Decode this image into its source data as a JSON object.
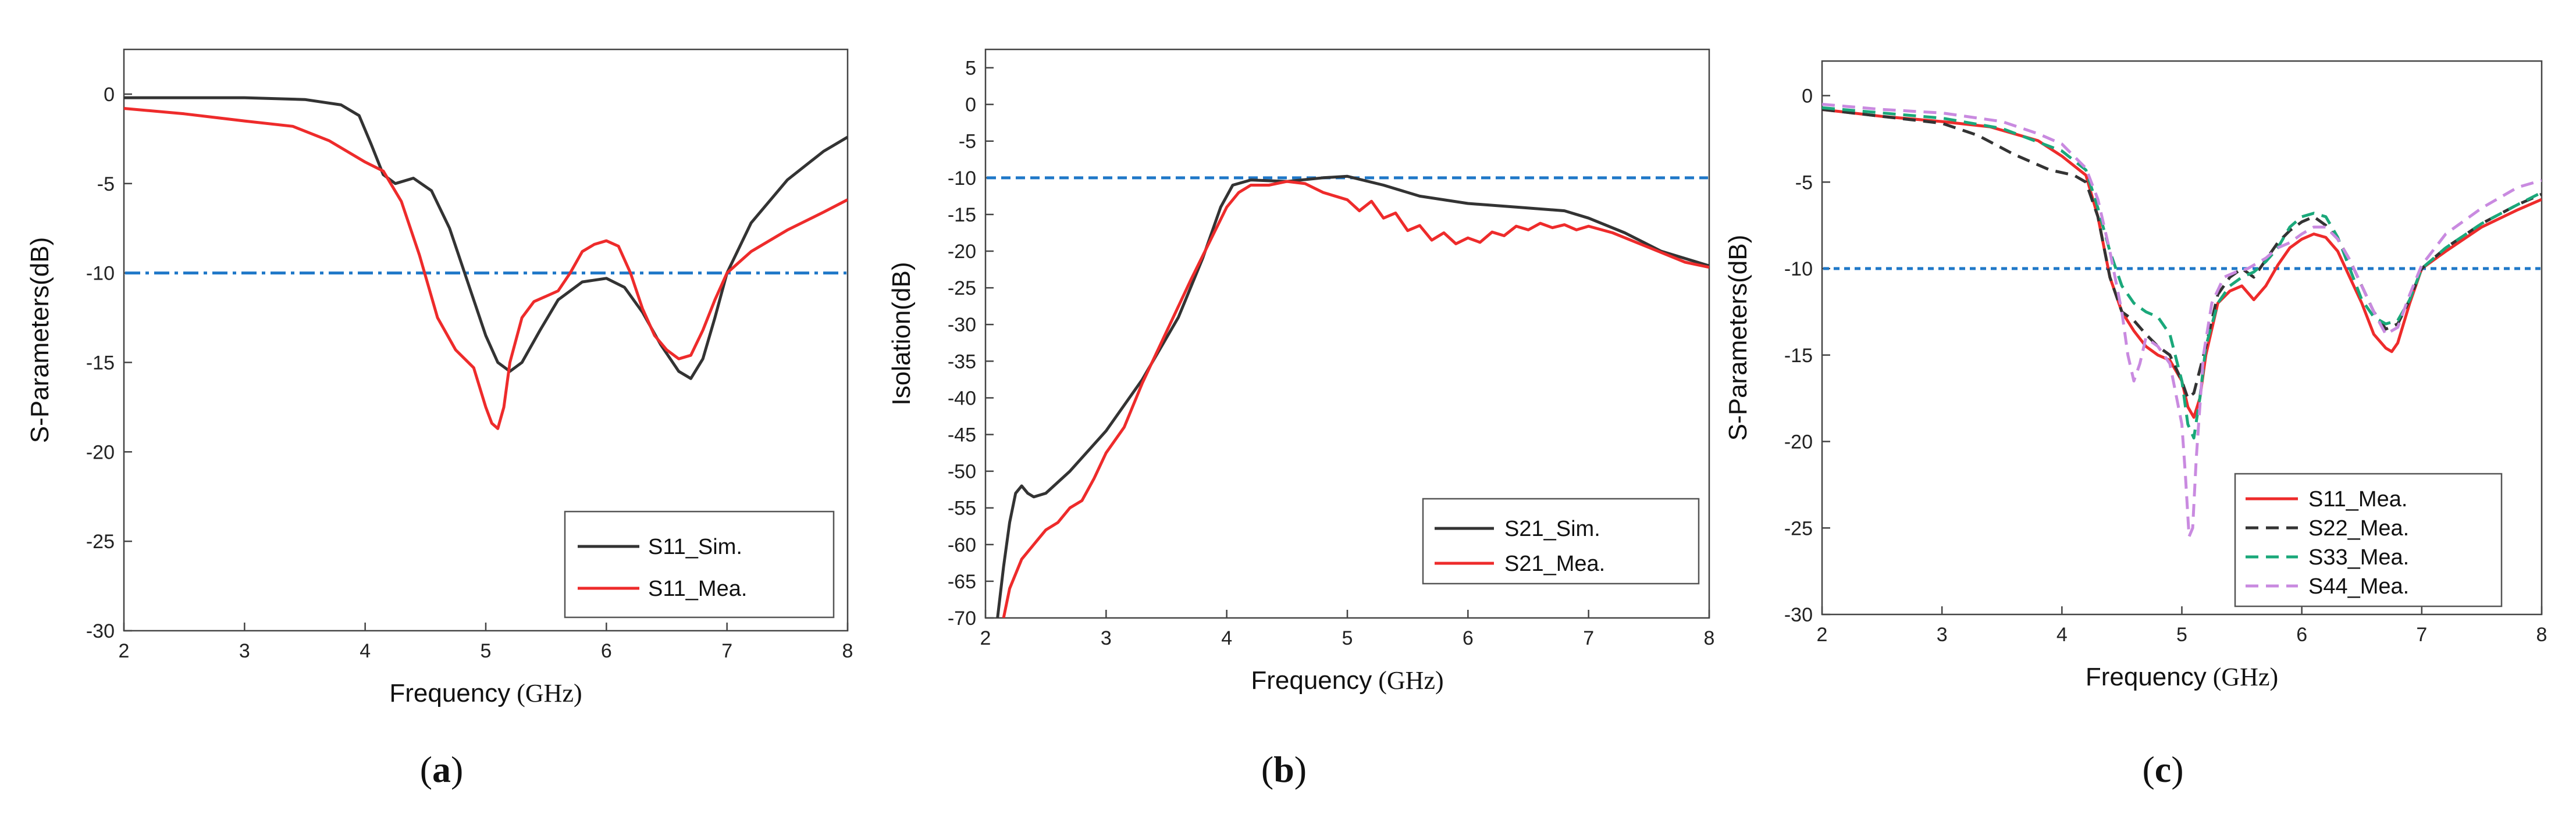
{
  "figure": {
    "panels": [
      {
        "label_open": "(",
        "label_letter": "a",
        "label_close": ")"
      },
      {
        "label_open": "(",
        "label_letter": "b",
        "label_close": ")"
      },
      {
        "label_open": "(",
        "label_letter": "c",
        "label_close": ")"
      }
    ]
  },
  "chart_data": [
    {
      "type": "line",
      "xlabel_main": "Frequency",
      "xlabel_unit": " (GHz)",
      "ylabel": "S-Parameters(dB)",
      "xlim": [
        2,
        8
      ],
      "ylim": [
        -30,
        2.5
      ],
      "xticks": [
        2,
        3,
        4,
        5,
        6,
        7,
        8
      ],
      "yticks": [
        0,
        -5,
        -10,
        -15,
        -20,
        -25,
        -30
      ],
      "legend_position": "bottom-right",
      "reference_line": {
        "y": -10,
        "color": "#1f78c8",
        "style": "dash-dot"
      },
      "series": [
        {
          "name": "S11_Sim.",
          "color": "#333333",
          "dash": "solid",
          "in_legend": true,
          "x": [
            2,
            2.5,
            3,
            3.5,
            3.8,
            3.95,
            4.05,
            4.15,
            4.25,
            4.4,
            4.55,
            4.7,
            4.85,
            5.0,
            5.1,
            5.2,
            5.3,
            5.45,
            5.6,
            5.8,
            6.0,
            6.15,
            6.3,
            6.45,
            6.6,
            6.7,
            6.8,
            6.9,
            7.0,
            7.2,
            7.5,
            7.8,
            8.0
          ],
          "y": [
            -0.2,
            -0.2,
            -0.2,
            -0.3,
            -0.6,
            -1.2,
            -2.8,
            -4.5,
            -5.0,
            -4.7,
            -5.4,
            -7.5,
            -10.5,
            -13.5,
            -15.0,
            -15.5,
            -15.0,
            -13.2,
            -11.5,
            -10.5,
            -10.3,
            -10.8,
            -12.2,
            -14.0,
            -15.5,
            -15.9,
            -14.8,
            -12.5,
            -10.0,
            -7.2,
            -4.8,
            -3.2,
            -2.4
          ]
        },
        {
          "name": "S11_Mea.",
          "color": "#ee2b2b",
          "dash": "solid",
          "in_legend": true,
          "x": [
            2,
            2.5,
            3,
            3.4,
            3.7,
            4.0,
            4.15,
            4.3,
            4.45,
            4.6,
            4.75,
            4.9,
            5.0,
            5.05,
            5.1,
            5.15,
            5.2,
            5.3,
            5.4,
            5.5,
            5.6,
            5.7,
            5.8,
            5.9,
            6.0,
            6.1,
            6.2,
            6.3,
            6.4,
            6.5,
            6.6,
            6.7,
            6.8,
            6.9,
            7.0,
            7.2,
            7.5,
            7.8,
            8.0
          ],
          "y": [
            -0.8,
            -1.1,
            -1.5,
            -1.8,
            -2.6,
            -3.8,
            -4.3,
            -6.0,
            -9.0,
            -12.5,
            -14.3,
            -15.3,
            -17.5,
            -18.4,
            -18.7,
            -17.5,
            -15.0,
            -12.5,
            -11.6,
            -11.3,
            -11.0,
            -10.0,
            -8.8,
            -8.4,
            -8.2,
            -8.5,
            -10.0,
            -12.0,
            -13.5,
            -14.3,
            -14.8,
            -14.6,
            -13.2,
            -11.5,
            -10.0,
            -8.8,
            -7.6,
            -6.6,
            -5.9
          ]
        }
      ]
    },
    {
      "type": "line",
      "xlabel_main": "Frequency",
      "xlabel_unit": " (GHz)",
      "ylabel": "Isolation(dB)",
      "xlim": [
        2,
        8
      ],
      "ylim": [
        -70,
        7.5
      ],
      "xticks": [
        2,
        3,
        4,
        5,
        6,
        7,
        8
      ],
      "yticks": [
        5,
        0,
        -5,
        -10,
        -15,
        -20,
        -25,
        -30,
        -35,
        -40,
        -45,
        -50,
        -55,
        -60,
        -65,
        -70
      ],
      "legend_position": "bottom-right",
      "reference_line": {
        "y": -10,
        "color": "#1f78c8",
        "style": "dash-dot"
      },
      "series": [
        {
          "name": "S21_Sim.",
          "color": "#333333",
          "dash": "solid",
          "in_legend": true,
          "x": [
            2.1,
            2.15,
            2.2,
            2.25,
            2.3,
            2.35,
            2.4,
            2.5,
            2.7,
            3.0,
            3.3,
            3.6,
            3.8,
            3.95,
            4.05,
            4.2,
            4.5,
            4.8,
            5.0,
            5.3,
            5.6,
            6.0,
            6.4,
            6.8,
            7.0,
            7.3,
            7.6,
            8.0
          ],
          "y": [
            -70,
            -63,
            -57,
            -53,
            -52,
            -53,
            -53.5,
            -53,
            -50,
            -44.5,
            -37.5,
            -29,
            -21,
            -14,
            -11,
            -10.3,
            -10.5,
            -10,
            -9.8,
            -11,
            -12.5,
            -13.5,
            -14,
            -14.5,
            -15.5,
            -17.5,
            -20,
            -22
          ]
        },
        {
          "name": "S21_Mea.",
          "color": "#ee2b2b",
          "dash": "solid",
          "in_legend": true,
          "x": [
            2.15,
            2.2,
            2.3,
            2.4,
            2.5,
            2.6,
            2.7,
            2.8,
            2.9,
            3.0,
            3.15,
            3.3,
            3.5,
            3.7,
            3.85,
            4.0,
            4.1,
            4.2,
            4.35,
            4.5,
            4.65,
            4.8,
            5.0,
            5.1,
            5.2,
            5.3,
            5.4,
            5.5,
            5.6,
            5.7,
            5.8,
            5.9,
            6.0,
            6.1,
            6.2,
            6.3,
            6.4,
            6.5,
            6.6,
            6.7,
            6.8,
            6.9,
            7.0,
            7.2,
            7.5,
            7.8,
            8.0
          ],
          "y": [
            -70,
            -66,
            -62,
            -60,
            -58,
            -57,
            -55,
            -54,
            -51,
            -47.5,
            -44,
            -38,
            -31,
            -24,
            -19,
            -14,
            -12,
            -11,
            -11,
            -10.5,
            -10.8,
            -12,
            -13,
            -14.5,
            -13.2,
            -15.5,
            -14.8,
            -17.2,
            -16.5,
            -18.5,
            -17.5,
            -19,
            -18.2,
            -18.8,
            -17.4,
            -17.9,
            -16.6,
            -17.1,
            -16.2,
            -16.8,
            -16.4,
            -17.1,
            -16.6,
            -17.5,
            -19.5,
            -21.5,
            -22.2
          ]
        }
      ]
    },
    {
      "type": "line",
      "xlabel_main": "Frequency",
      "xlabel_unit": " (GHz)",
      "ylabel": "S-Parameters(dB)",
      "xlim": [
        2,
        8
      ],
      "ylim": [
        -30,
        2
      ],
      "xticks": [
        2,
        3,
        4,
        5,
        6,
        7,
        8
      ],
      "yticks": [
        0,
        -5,
        -10,
        -15,
        -20,
        -25,
        -30
      ],
      "legend_position": "bottom-right",
      "reference_line": {
        "y": -10,
        "color": "#1f78c8",
        "style": "dash-dot"
      },
      "series": [
        {
          "name": "S11_Mea.",
          "color": "#ee2b2b",
          "dash": "solid",
          "in_legend": true,
          "x": [
            2,
            2.5,
            3,
            3.4,
            3.8,
            4.0,
            4.2,
            4.3,
            4.4,
            4.5,
            4.6,
            4.7,
            4.8,
            4.9,
            5.0,
            5.05,
            5.1,
            5.15,
            5.2,
            5.3,
            5.4,
            5.5,
            5.6,
            5.7,
            5.8,
            5.9,
            6.0,
            6.1,
            6.2,
            6.3,
            6.4,
            6.5,
            6.6,
            6.7,
            6.75,
            6.8,
            6.9,
            7.0,
            7.2,
            7.5,
            7.8,
            8.0
          ],
          "y": [
            -0.8,
            -1.2,
            -1.5,
            -1.8,
            -2.6,
            -3.5,
            -4.6,
            -7.0,
            -10.5,
            -12.5,
            -13.6,
            -14.5,
            -15.0,
            -15.3,
            -16.5,
            -18.0,
            -18.6,
            -17.5,
            -15.0,
            -12.0,
            -11.3,
            -11.0,
            -11.8,
            -11.0,
            -9.8,
            -8.8,
            -8.3,
            -8.0,
            -8.2,
            -9.0,
            -10.5,
            -12.0,
            -13.8,
            -14.6,
            -14.8,
            -14.3,
            -12.0,
            -10.0,
            -9.0,
            -7.6,
            -6.6,
            -6.0
          ]
        },
        {
          "name": "S22_Mea.",
          "color": "#333333",
          "dash": "dash",
          "in_legend": true,
          "x": [
            2,
            2.5,
            3,
            3.3,
            3.6,
            3.9,
            4.1,
            4.2,
            4.3,
            4.4,
            4.5,
            4.6,
            4.7,
            4.8,
            4.9,
            5.0,
            5.05,
            5.1,
            5.2,
            5.3,
            5.4,
            5.5,
            5.6,
            5.7,
            5.8,
            5.9,
            6.0,
            6.1,
            6.2,
            6.3,
            6.4,
            6.5,
            6.6,
            6.7,
            6.8,
            6.9,
            7.0,
            7.2,
            7.5,
            7.8,
            8.0
          ],
          "y": [
            -0.8,
            -1.2,
            -1.6,
            -2.3,
            -3.4,
            -4.3,
            -4.6,
            -5.0,
            -7.0,
            -10.5,
            -12.5,
            -13.0,
            -13.8,
            -14.5,
            -15.0,
            -16.5,
            -17.5,
            -17.2,
            -14.5,
            -11.5,
            -10.5,
            -10.0,
            -10.5,
            -9.5,
            -8.5,
            -7.8,
            -7.3,
            -7.0,
            -7.5,
            -8.3,
            -9.5,
            -11.0,
            -12.5,
            -13.5,
            -13.2,
            -11.8,
            -10.0,
            -8.8,
            -7.4,
            -6.3,
            -5.7
          ]
        },
        {
          "name": "S33_Mea.",
          "color": "#1aa87a",
          "dash": "dash",
          "in_legend": true,
          "x": [
            2,
            2.5,
            3,
            3.5,
            4.0,
            4.2,
            4.3,
            4.4,
            4.5,
            4.6,
            4.7,
            4.8,
            4.9,
            5.0,
            5.05,
            5.1,
            5.15,
            5.2,
            5.3,
            5.4,
            5.5,
            5.6,
            5.7,
            5.8,
            5.9,
            6.0,
            6.1,
            6.2,
            6.3,
            6.4,
            6.5,
            6.6,
            6.7,
            6.8,
            6.9,
            7.0,
            7.2,
            7.5,
            7.8,
            8.0
          ],
          "y": [
            -0.7,
            -1.0,
            -1.3,
            -1.9,
            -3.2,
            -4.3,
            -6.5,
            -9.0,
            -11.0,
            -12.0,
            -12.5,
            -12.8,
            -13.8,
            -16.5,
            -19.0,
            -19.8,
            -17.5,
            -14.5,
            -12.0,
            -11.0,
            -10.5,
            -10.2,
            -9.6,
            -8.8,
            -7.6,
            -7.0,
            -6.8,
            -7.0,
            -8.2,
            -10.0,
            -11.8,
            -12.8,
            -13.2,
            -13.0,
            -11.8,
            -10.0,
            -8.8,
            -7.4,
            -6.3,
            -5.6
          ]
        },
        {
          "name": "S44_Mea.",
          "color": "#c98ae0",
          "dash": "dash",
          "in_legend": true,
          "x": [
            2,
            2.5,
            3,
            3.5,
            3.8,
            4.0,
            4.1,
            4.2,
            4.3,
            4.4,
            4.5,
            4.55,
            4.6,
            4.65,
            4.7,
            4.8,
            4.9,
            5.0,
            5.03,
            5.06,
            5.09,
            5.12,
            5.18,
            5.25,
            5.35,
            5.45,
            5.55,
            5.7,
            5.8,
            5.9,
            6.0,
            6.1,
            6.2,
            6.3,
            6.4,
            6.5,
            6.6,
            6.7,
            6.8,
            6.9,
            7.0,
            7.2,
            7.5,
            7.8,
            8.0
          ],
          "y": [
            -0.5,
            -0.8,
            -1.0,
            -1.5,
            -2.2,
            -2.8,
            -3.5,
            -4.2,
            -6.0,
            -9.0,
            -12.5,
            -15.0,
            -16.5,
            -15.5,
            -14.0,
            -14.5,
            -15.5,
            -19.0,
            -22.0,
            -25.5,
            -25.0,
            -21.0,
            -15.0,
            -12.0,
            -10.5,
            -10.2,
            -10.0,
            -9.4,
            -8.8,
            -8.5,
            -8.0,
            -7.6,
            -7.6,
            -8.3,
            -9.5,
            -11.0,
            -12.5,
            -13.8,
            -13.4,
            -11.5,
            -9.8,
            -8.0,
            -6.5,
            -5.3,
            -4.9
          ]
        }
      ]
    }
  ]
}
